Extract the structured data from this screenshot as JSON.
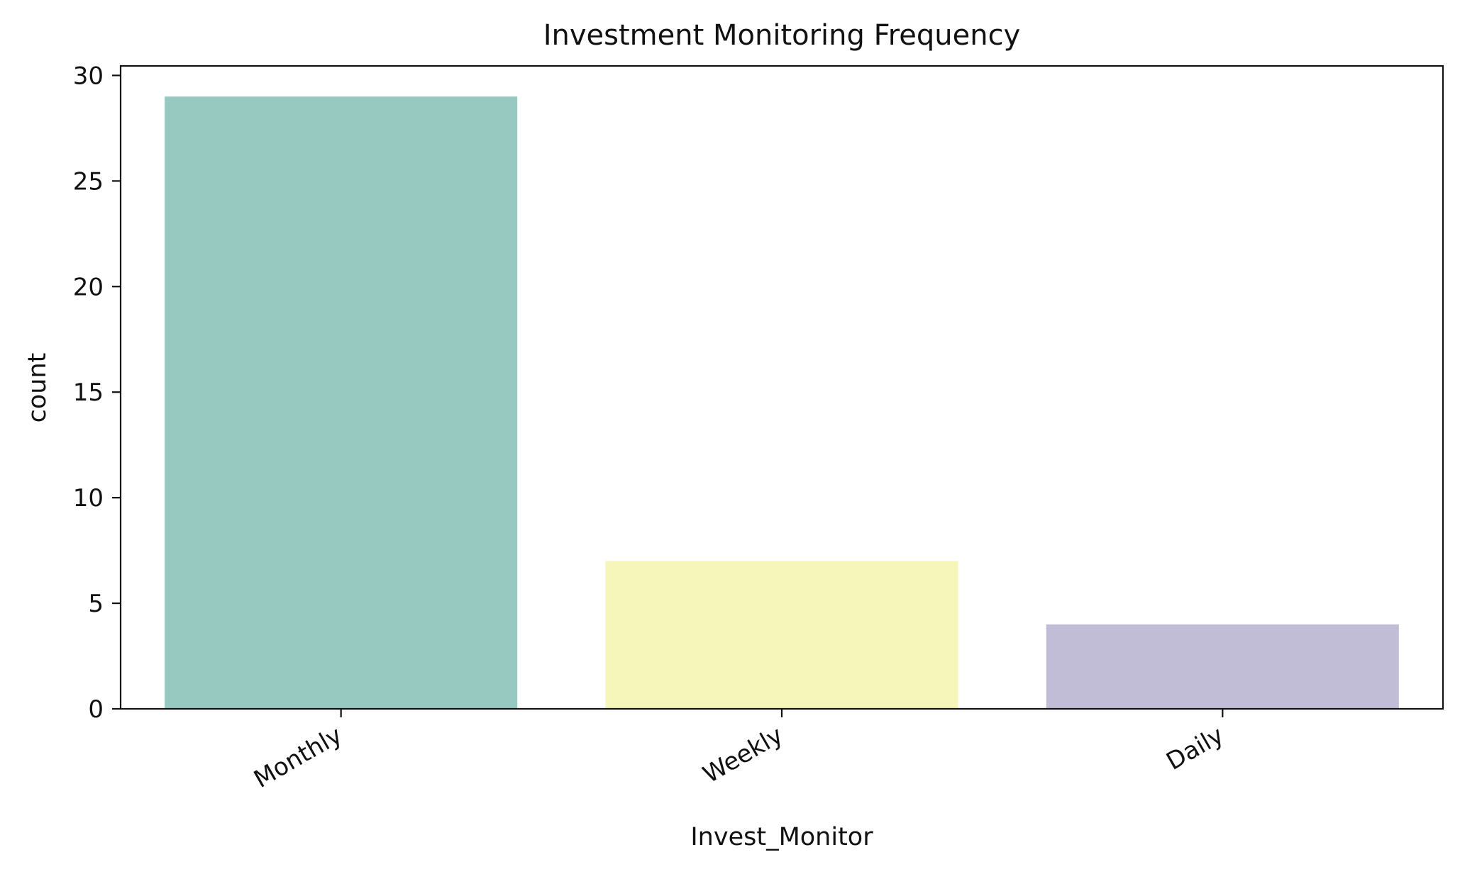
{
  "chart_data": {
    "type": "bar",
    "title": "Investment Monitoring Frequency",
    "xlabel": "Invest_Monitor",
    "ylabel": "count",
    "categories": [
      "Monthly",
      "Weekly",
      "Daily"
    ],
    "values": [
      29,
      7,
      4
    ],
    "colors": [
      "#98c9c1",
      "#f6f6bb",
      "#c2bdd6"
    ],
    "ylim": [
      0,
      30.45
    ],
    "yticks": [
      0,
      5,
      10,
      15,
      20,
      25,
      30
    ],
    "grid": false,
    "legend": "none"
  }
}
